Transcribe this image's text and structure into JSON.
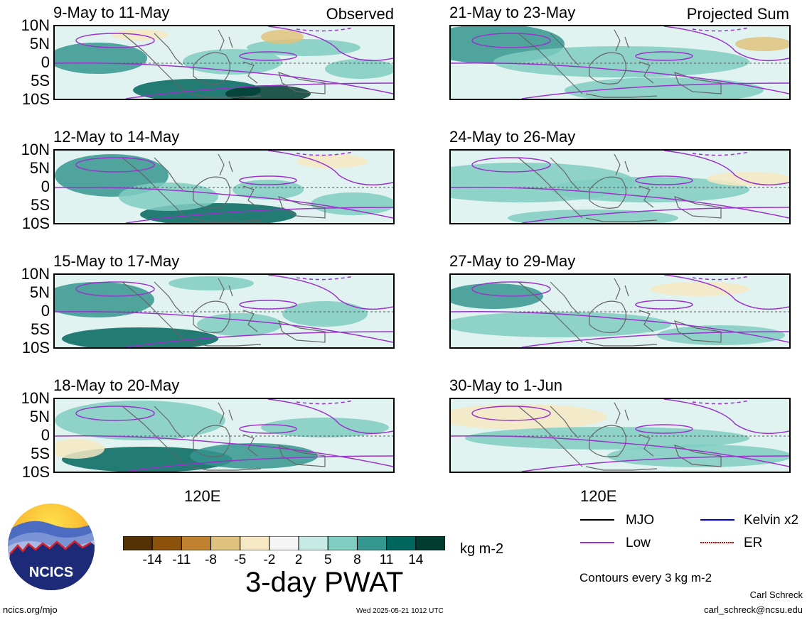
{
  "panels_left": [
    {
      "title": "9-May to 11-May",
      "tag": "Observed"
    },
    {
      "title": "12-May to 14-May",
      "tag": ""
    },
    {
      "title": "15-May to 17-May",
      "tag": ""
    },
    {
      "title": "18-May to 20-May",
      "tag": ""
    }
  ],
  "panels_right": [
    {
      "title": "21-May to 23-May",
      "tag": "Projected Sum"
    },
    {
      "title": "24-May to 26-May",
      "tag": ""
    },
    {
      "title": "27-May to 29-May",
      "tag": ""
    },
    {
      "title": "30-May to 1-Jun",
      "tag": ""
    }
  ],
  "lat_labels": [
    "10N",
    "5N",
    "0",
    "5S",
    "10S"
  ],
  "lon_label": "120E",
  "colorbar": {
    "tick_labels": [
      "-14",
      "-11",
      "-8",
      "-5",
      "-2",
      "2",
      "5",
      "8",
      "11",
      "14"
    ],
    "colors": [
      "#543005",
      "#8c510a",
      "#bf812d",
      "#dfc27d",
      "#f6e8c3",
      "#f5f5f5",
      "#c7eae5",
      "#80cdc1",
      "#35978f",
      "#01665e",
      "#003c30"
    ],
    "units": "kg m-2",
    "title": "3-day PWAT"
  },
  "legend": {
    "mjo": "MJO",
    "kelvin": "Kelvin x2",
    "low": "Low",
    "er": "ER",
    "mjo_color": "#000000",
    "kelvin_color": "#0000cc",
    "low_color": "#9a32cd",
    "er_color": "#cc0000",
    "contours_note": "Contours every 3 kg m-2"
  },
  "logo": {
    "text": "NCICS"
  },
  "footer": {
    "url": "ncics.org/mjo",
    "timestamp": "Wed 2025-05-21 1012 UTC",
    "author": "Carl Schreck",
    "email": "carl_schreck@ncsu.edu"
  }
}
